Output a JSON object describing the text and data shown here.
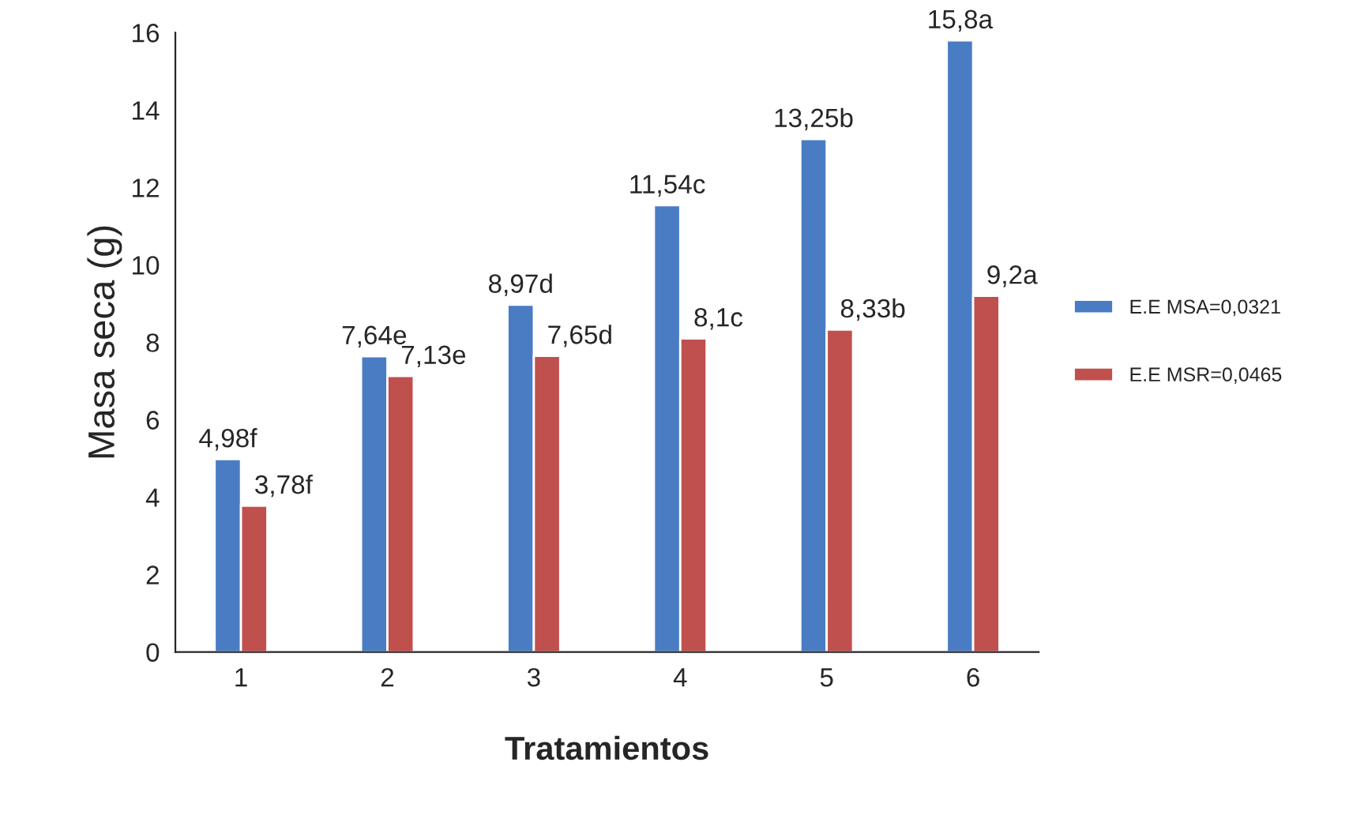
{
  "chart_data": {
    "type": "bar",
    "xlabel": "Tratamientos",
    "ylabel": "Masa seca (g)",
    "categories": [
      "1",
      "2",
      "3",
      "4",
      "5",
      "6"
    ],
    "series": [
      {
        "name": "E.E MSA=0,0321",
        "color": "#4a7cc4",
        "values": [
          4.98,
          7.64,
          8.97,
          11.54,
          13.25,
          15.8
        ],
        "value_labels": [
          "4,98f",
          "7,64e",
          "8,97d",
          "11,54c",
          "13,25b",
          "15,8a"
        ]
      },
      {
        "name": "E.E MSR=0,0465",
        "color": "#c0504d",
        "values": [
          3.78,
          7.13,
          7.65,
          8.1,
          8.33,
          9.2
        ],
        "value_labels": [
          "3,78f",
          "7,13e",
          "7,65d",
          "8,1c",
          "8,33b",
          "9,2a"
        ]
      }
    ],
    "ylim": [
      0,
      16
    ],
    "yticks": [
      0,
      2,
      4,
      6,
      8,
      10,
      12,
      14,
      16
    ],
    "grid": false,
    "legend": "right"
  }
}
